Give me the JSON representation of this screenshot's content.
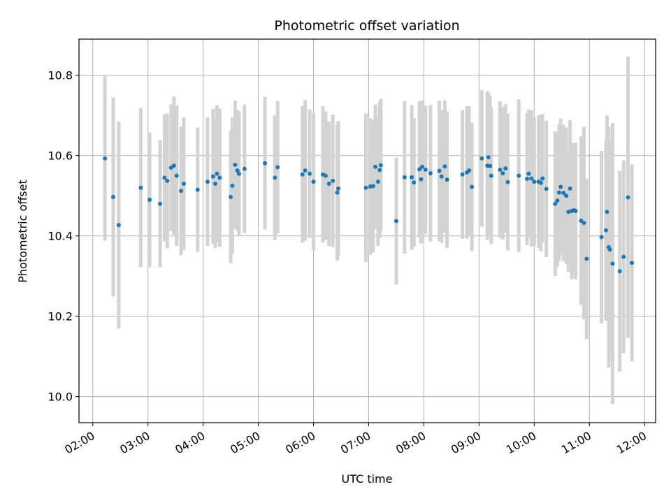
{
  "chart_data": {
    "type": "scatter",
    "title": "Photometric offset variation",
    "xlabel": "UTC time",
    "ylabel": "Photometric offset",
    "xlim": [
      1.75,
      12.2
    ],
    "ylim": [
      9.935,
      10.89
    ],
    "grid": true,
    "x_ticks": [
      2,
      3,
      4,
      5,
      6,
      7,
      8,
      9,
      10,
      11,
      12
    ],
    "x_tick_labels": [
      "02:00",
      "03:00",
      "04:00",
      "05:00",
      "06:00",
      "07:00",
      "08:00",
      "09:00",
      "10:00",
      "11:00",
      "12:00"
    ],
    "y_ticks": [
      10.0,
      10.2,
      10.4,
      10.6,
      10.8
    ],
    "y_tick_labels": [
      "10.0",
      "10.2",
      "10.4",
      "10.6",
      "10.8"
    ],
    "colors": {
      "point": "#1f77b4",
      "errorbar": "#d3d3d3",
      "grid": "#b0b0b0"
    },
    "series": [
      {
        "name": "offset",
        "x": [
          2.22,
          2.37,
          2.47,
          2.87,
          3.03,
          3.22,
          3.3,
          3.35,
          3.42,
          3.47,
          3.52,
          3.6,
          3.65,
          3.9,
          4.08,
          4.18,
          4.22,
          4.25,
          4.3,
          4.5,
          4.53,
          4.58,
          4.62,
          4.65,
          4.75,
          5.12,
          5.3,
          5.35,
          5.8,
          5.85,
          5.93,
          6.0,
          6.17,
          6.22,
          6.28,
          6.35,
          6.43,
          6.45,
          6.95,
          7.03,
          7.08,
          7.12,
          7.17,
          7.2,
          7.22,
          7.5,
          7.65,
          7.78,
          7.82,
          7.92,
          7.95,
          7.97,
          8.03,
          8.12,
          8.28,
          8.32,
          8.38,
          8.42,
          8.7,
          8.78,
          8.82,
          8.87,
          9.05,
          9.15,
          9.17,
          9.2,
          9.22,
          9.38,
          9.43,
          9.48,
          9.52,
          9.72,
          9.87,
          9.9,
          9.95,
          10.0,
          10.08,
          10.12,
          10.15,
          10.22,
          10.38,
          10.42,
          10.45,
          10.48,
          10.53,
          10.58,
          10.62,
          10.65,
          10.68,
          10.72,
          10.75,
          10.85,
          10.9,
          10.95,
          11.22,
          11.3,
          11.32,
          11.35,
          11.37,
          11.42,
          11.55,
          11.62,
          11.7,
          11.77
        ],
        "y": [
          10.593,
          10.497,
          10.427,
          10.52,
          10.49,
          10.48,
          10.545,
          10.537,
          10.57,
          10.575,
          10.55,
          10.512,
          10.53,
          10.515,
          10.535,
          10.548,
          10.53,
          10.555,
          10.545,
          10.497,
          10.525,
          10.577,
          10.563,
          10.555,
          10.567,
          10.581,
          10.545,
          10.571,
          10.553,
          10.563,
          10.555,
          10.535,
          10.553,
          10.55,
          10.53,
          10.537,
          10.508,
          10.518,
          10.52,
          10.523,
          10.524,
          10.572,
          10.535,
          10.564,
          10.576,
          10.437,
          10.546,
          10.546,
          10.533,
          10.566,
          10.541,
          10.572,
          10.565,
          10.556,
          10.562,
          10.548,
          10.573,
          10.54,
          10.553,
          10.558,
          10.563,
          10.522,
          10.593,
          10.575,
          10.596,
          10.574,
          10.55,
          10.565,
          10.556,
          10.568,
          10.534,
          10.55,
          10.542,
          10.555,
          10.543,
          10.535,
          10.535,
          10.532,
          10.543,
          10.517,
          10.48,
          10.488,
          10.508,
          10.522,
          10.507,
          10.5,
          10.46,
          10.518,
          10.462,
          10.464,
          10.462,
          10.438,
          10.432,
          10.343,
          10.397,
          10.414,
          10.46,
          10.372,
          10.366,
          10.331,
          10.312,
          10.348,
          10.496,
          10.333
        ],
        "err": [
          0.205,
          0.248,
          0.258,
          0.198,
          0.168,
          0.158,
          0.158,
          0.168,
          0.158,
          0.172,
          0.175,
          0.16,
          0.165,
          0.155,
          0.16,
          0.168,
          0.16,
          0.17,
          0.172,
          0.165,
          0.17,
          0.16,
          0.15,
          0.155,
          0.16,
          0.165,
          0.155,
          0.165,
          0.17,
          0.175,
          0.16,
          0.17,
          0.17,
          0.16,
          0.155,
          0.165,
          0.17,
          0.168,
          0.185,
          0.17,
          0.165,
          0.155,
          0.16,
          0.17,
          0.165,
          0.158,
          0.19,
          0.18,
          0.16,
          0.17,
          0.16,
          0.165,
          0.16,
          0.17,
          0.175,
          0.165,
          0.165,
          0.17,
          0.16,
          0.165,
          0.16,
          0.16,
          0.17,
          0.185,
          0.16,
          0.175,
          0.17,
          0.17,
          0.165,
          0.16,
          0.17,
          0.19,
          0.165,
          0.16,
          0.17,
          0.16,
          0.165,
          0.17,
          0.16,
          0.17,
          0.18,
          0.165,
          0.17,
          0.17,
          0.17,
          0.17,
          0.15,
          0.17,
          0.17,
          0.16,
          0.17,
          0.21,
          0.24,
          0.2,
          0.215,
          0.225,
          0.24,
          0.3,
          0.27,
          0.35,
          0.25,
          0.24,
          0.35,
          0.245
        ]
      }
    ]
  }
}
